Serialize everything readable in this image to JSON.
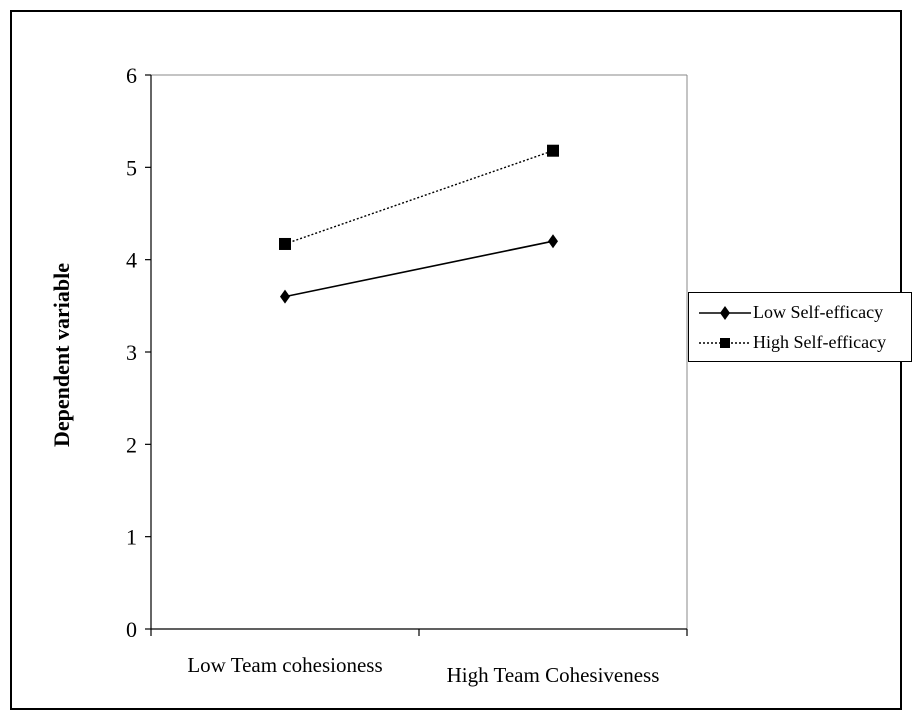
{
  "chart_data": {
    "type": "line",
    "categories": [
      "Low Team cohesioness",
      "High Team Cohesiveness"
    ],
    "series": [
      {
        "name": "Low Self-efficacy",
        "values": [
          3.6,
          4.2
        ],
        "line_style": "solid",
        "marker": "diamond",
        "color": "#000000"
      },
      {
        "name": "High Self-efficacy",
        "values": [
          4.17,
          5.18
        ],
        "line_style": "dotted",
        "marker": "square",
        "color": "#000000"
      }
    ],
    "xlabel": "",
    "ylabel": "Dependent variable",
    "ylim": [
      0,
      6
    ],
    "yticks": [
      "0",
      "1",
      "2",
      "3",
      "4",
      "5",
      "6"
    ],
    "grid": false,
    "legend_position": "right"
  }
}
